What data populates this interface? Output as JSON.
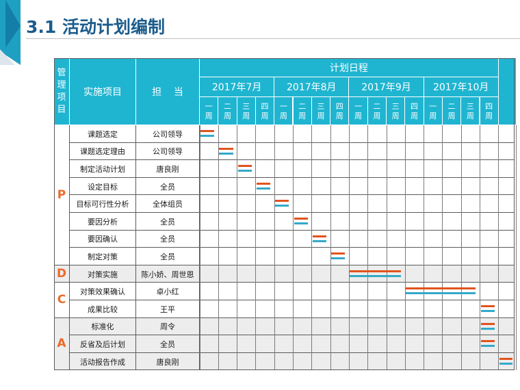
{
  "slide": {
    "title": "3.1  活动计划编制"
  },
  "colors": {
    "header_bg": "#1fb5d1",
    "phase_text": "#ea6b2b",
    "plan_bar": "#e2531d",
    "actual_bar": "#33a9c9",
    "title_text": "#1b5c8c",
    "row_band": "#ededed"
  },
  "table": {
    "col_manage": "管\n理\n项\n目",
    "col_item": "实施项目",
    "col_owner": "担    当",
    "schedule_title": "计划日程",
    "months": [
      "2017年7月",
      "2017年8月",
      "2017年9月",
      "2017年10月"
    ],
    "weeks": [
      "一\n周",
      "二\n周",
      "三\n周",
      "四\n周"
    ],
    "phases": [
      {
        "label": "P",
        "rows": 8
      },
      {
        "label": "D",
        "rows": 1
      },
      {
        "label": "C",
        "rows": 2
      },
      {
        "label": "A",
        "rows": 3
      }
    ],
    "rows": [
      {
        "item": "课题选定",
        "owner": "公司领导",
        "plan": [
          1,
          1
        ],
        "actual": [
          1,
          1
        ]
      },
      {
        "item": "课题选定理由",
        "owner": "公司领导",
        "plan": [
          2,
          2
        ],
        "actual": [
          2,
          2
        ]
      },
      {
        "item": "制定活动计划",
        "owner": "唐良刚",
        "plan": [
          3,
          3
        ],
        "actual": [
          3,
          3
        ]
      },
      {
        "item": "设定目标",
        "owner": "全员",
        "plan": [
          4,
          4
        ],
        "actual": [
          4,
          4
        ]
      },
      {
        "item": "目标可行性分析",
        "owner": "全体组员",
        "plan": [
          5,
          5
        ],
        "actual": [
          5,
          5
        ]
      },
      {
        "item": "要因分析",
        "owner": "全员",
        "plan": [
          6,
          6
        ],
        "actual": [
          6,
          6
        ]
      },
      {
        "item": "要因确认",
        "owner": "全员",
        "plan": [
          7,
          7
        ],
        "actual": [
          7,
          7
        ]
      },
      {
        "item": "制定对策",
        "owner": "全员",
        "plan": [
          8,
          8
        ],
        "actual": [
          8,
          8
        ]
      },
      {
        "item": "对策实施",
        "owner": "陈小娇、周世恩",
        "plan": [
          9,
          11
        ],
        "actual": [
          9,
          11
        ]
      },
      {
        "item": "对策效果确认",
        "owner": "卓小红",
        "plan": [
          12,
          15
        ],
        "actual": [
          12,
          15
        ]
      },
      {
        "item": "成果比较",
        "owner": "王平",
        "plan": [
          16,
          16
        ],
        "actual": [
          16,
          16
        ]
      },
      {
        "item": "标准化",
        "owner": "周令",
        "plan": [
          16,
          16
        ],
        "actual": [
          16,
          16
        ]
      },
      {
        "item": "反省及后计划",
        "owner": "全员",
        "plan": [
          16,
          16
        ],
        "actual": [
          16,
          16
        ]
      },
      {
        "item": "活动报告作成",
        "owner": "唐良刚",
        "plan": [
          17,
          17
        ],
        "actual": [
          17,
          17
        ]
      }
    ]
  }
}
